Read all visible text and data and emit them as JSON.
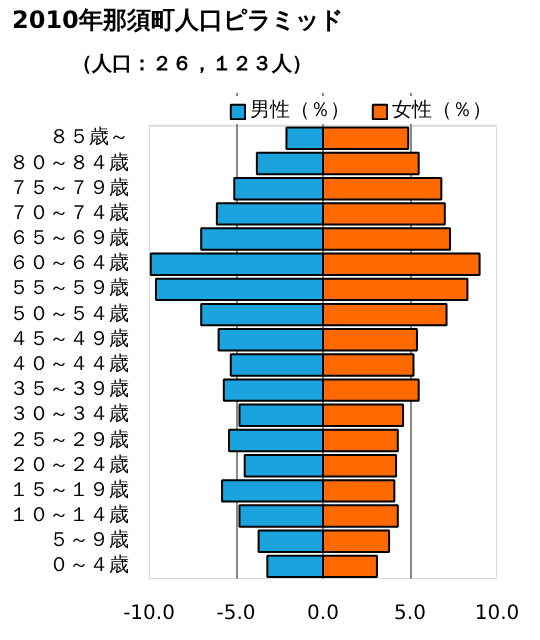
{
  "chart_data": {
    "type": "bar",
    "orientation": "horizontal",
    "title": "2010年那須町人口ピラミッド",
    "subtitle": "（人口：２６，１２３人）",
    "categories": [
      "８５歳～",
      "８０～８４歳",
      "７５～７９歳",
      "７０～７４歳",
      "６５～６９歳",
      "６０～６４歳",
      "５５～５９歳",
      "５０～５４歳",
      "４５～４９歳",
      "４０～４４歳",
      "３５～３９歳",
      "３０～３４歳",
      "２５～２９歳",
      "２０～２４歳",
      "１５～１９歳",
      "１０～１４歳",
      "５～９歳",
      "０～４歳"
    ],
    "series": [
      {
        "name": "男性（％）",
        "color": "#1aa3dc",
        "values": [
          -2.1,
          -3.8,
          -5.1,
          -6.1,
          -7.0,
          -9.9,
          -9.6,
          -7.0,
          -6.0,
          -5.3,
          -5.7,
          -4.8,
          -5.4,
          -4.5,
          -5.8,
          -4.8,
          -3.7,
          -3.2
        ]
      },
      {
        "name": "女性（％）",
        "color": "#ff6a00",
        "values": [
          4.9,
          5.5,
          6.8,
          7.0,
          7.3,
          9.0,
          8.3,
          7.1,
          5.4,
          5.2,
          5.5,
          4.6,
          4.3,
          4.2,
          4.1,
          4.3,
          3.8,
          3.1
        ]
      }
    ],
    "xlim": [
      -10,
      10
    ],
    "xticks": [
      {
        "value": -10,
        "label": "-10.0"
      },
      {
        "value": -5,
        "label": "-5.0"
      },
      {
        "value": 0,
        "label": "0.0"
      },
      {
        "value": 5,
        "label": "5.0"
      },
      {
        "value": 10,
        "label": "10.0"
      }
    ],
    "stacked": true,
    "grid": "x",
    "legend": "top right"
  }
}
